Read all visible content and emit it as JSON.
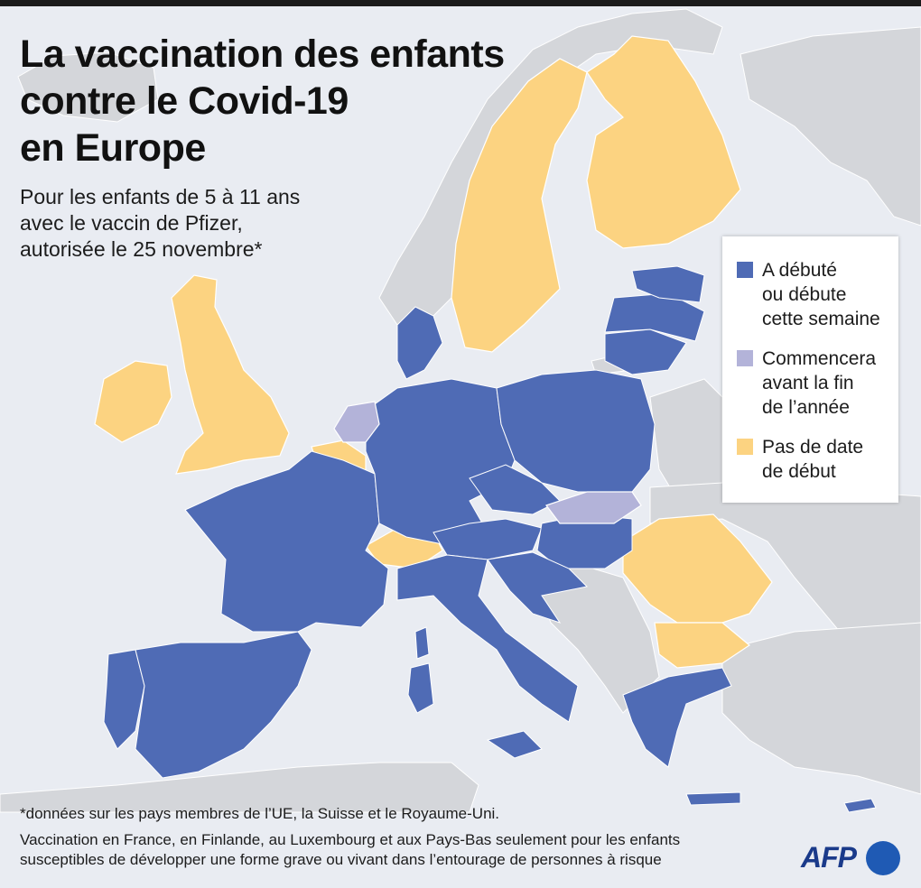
{
  "title_lines": [
    "La vaccination des enfants",
    "contre le Covid-19",
    "en Europe"
  ],
  "subtitle_lines": [
    "Pour les enfants de 5 à 11 ans",
    "avec le vaccin de Pfizer,",
    "autorisée le 25 novembre*"
  ],
  "legend": {
    "items": [
      {
        "id": "started",
        "lines": [
          "A débuté",
          "ou débute",
          "cette semaine"
        ],
        "color": "#4f6bb5"
      },
      {
        "id": "before-year-end",
        "lines": [
          "Commencera",
          "avant la fin",
          "de l’année"
        ],
        "color": "#b3b3d9"
      },
      {
        "id": "no-date",
        "lines": [
          "Pas de date",
          "de début"
        ],
        "color": "#fcd381"
      }
    ]
  },
  "colors": {
    "sea": "#e9ecf2",
    "non_covered_land": "#d4d6da",
    "border": "#ffffff"
  },
  "country_status": {
    "started": [
      "Portugal",
      "Espagne",
      "France",
      "Allemagne",
      "Danemark",
      "Autriche",
      "Italie",
      "Pologne",
      "Tchéquie",
      "Hongrie",
      "Slovénie",
      "Croatie",
      "Grèce",
      "Chypre",
      "Lituanie",
      "Lettonie",
      "Estonie",
      "Luxembourg",
      "Malte"
    ],
    "before_year_end": [
      "Pays-Bas",
      "Slovaquie"
    ],
    "no_date": [
      "Royaume-Uni",
      "Irlande",
      "Belgique",
      "Suisse",
      "Suède",
      "Finlande",
      "Roumanie",
      "Bulgarie"
    ]
  },
  "notes": {
    "footnote": "*données sur les pays membres de l’UE, la Suisse et le Royaume-Uni.",
    "detail_lines": [
      "Vaccination en France, en Finlande, au Luxembourg et aux Pays-Bas seulement  pour les enfants",
      "susceptibles de développer une forme grave ou vivant dans l’entourage de personnes à risque"
    ]
  },
  "logo": {
    "text": "AFP",
    "icon": "afp-dot-icon"
  }
}
